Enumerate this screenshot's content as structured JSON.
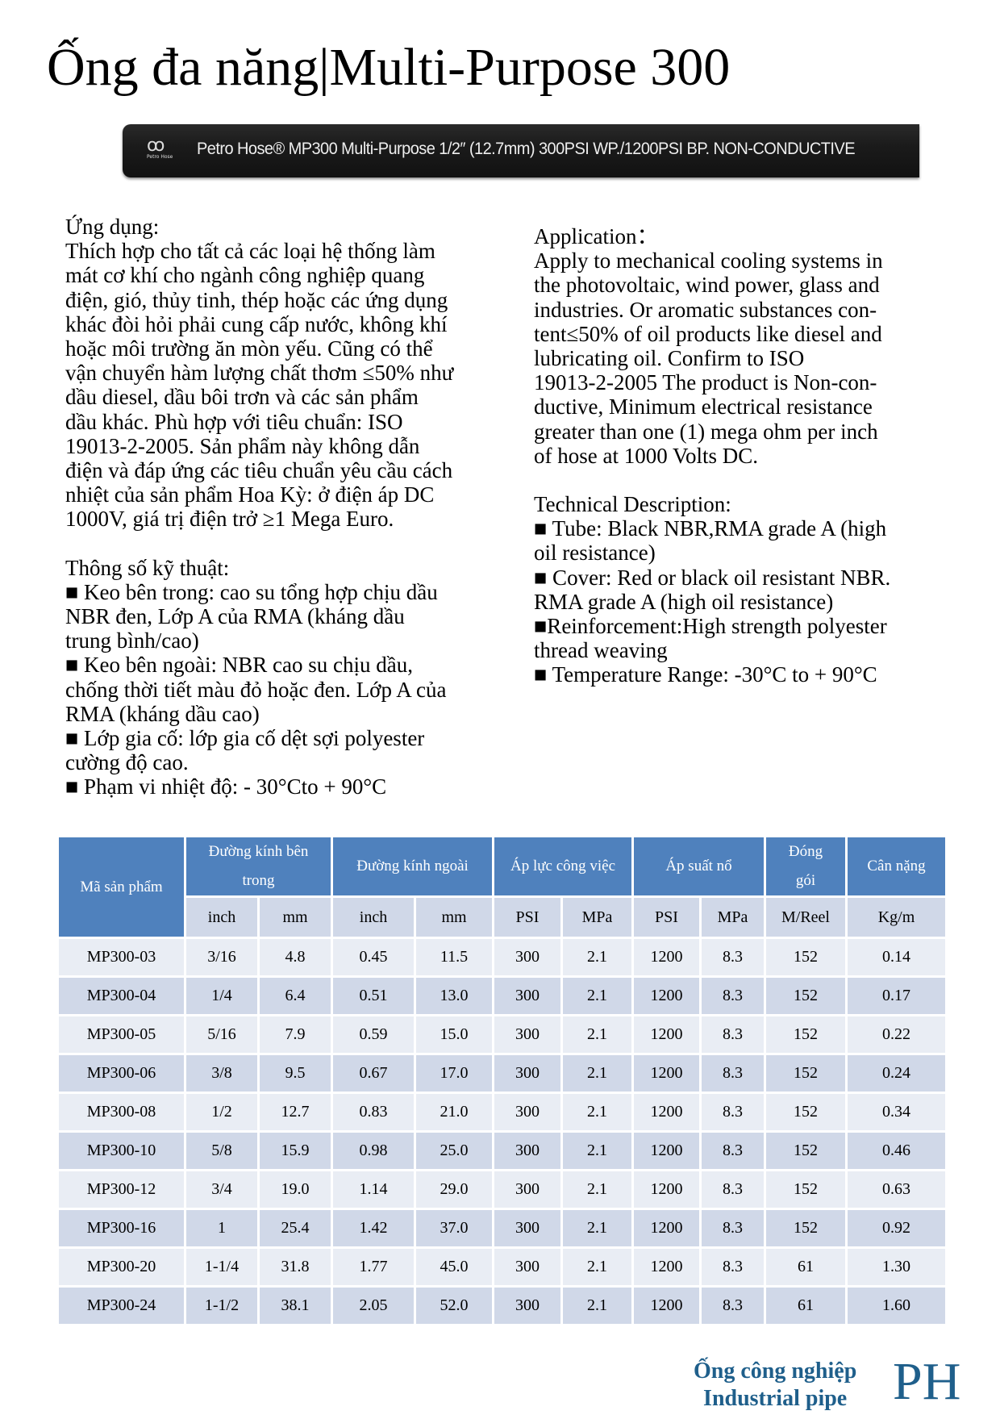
{
  "title": "Ống đa năng|Multi-Purpose 300",
  "hose_banner": {
    "logo_text": "Petro Hose",
    "text": "Petro Hose® MP300 Multi-Purpose 1/2″ (12.7mm) 300PSI WP./1200PSI BP. NON-CONDUCTIVE"
  },
  "left_column": {
    "lines1": [
      "Ứng dụng:",
      "Thích hợp cho tất cả các loại hệ thống làm",
      "mát cơ khí cho ngành công nghiệp quang",
      "điện, gió, thủy tinh, thép hoặc các ứng dụng",
      "khác đòi hỏi phải cung cấp nước, không khí",
      "hoặc môi trường ăn mòn yếu. Cũng có thể",
      "vận chuyển hàm lượng chất thơm ≤50% như",
      "dầu diesel, dầu bôi trơn và các sản phẩm",
      "dầu khác. Phù hợp với tiêu chuẩn: ISO",
      "19013-2-2005. Sản phẩm này không dẫn",
      "điện và đáp ứng các tiêu chuẩn yêu cầu cách",
      "nhiệt của sản phẩm Hoa Kỳ: ở điện áp DC",
      "1000V, giá trị điện trở ≥1 Mega Euro."
    ],
    "lines2": [
      "Thông số kỹ thuật:",
      "■ Keo bên trong: cao su tổng hợp chịu dầu",
      "NBR đen, Lớp A của RMA (kháng dầu",
      "trung bình/cao)",
      "■ Keo bên ngoài: NBR cao su chịu dầu,",
      "chống thời tiết màu đỏ hoặc đen. Lớp A của",
      "RMA (kháng dầu cao)",
      "■ Lớp gia cố: lớp gia cố dệt sợi polyester",
      "cường độ cao.",
      "■ Phạm vi nhiệt độ: - 30°Cto + 90°C"
    ]
  },
  "right_column": {
    "lines1": [
      "Application：",
      "Apply to mechanical cooling systems in",
      "the photovoltaic, wind power, glass and",
      "industries. Or aromatic substances con-",
      "tent≤50% of oil products like diesel and",
      "lubricating oil. Confirm to ISO",
      "19013-2-2005 The product is Non-con-",
      "ductive, Minimum electrical resistance",
      "greater than one (1) mega ohm per inch",
      "of hose at 1000 Volts DC."
    ],
    "lines2": [
      "Technical Description:",
      "■ Tube: Black NBR,RMA grade A (high",
      "oil resistance)",
      "■ Cover: Red or black oil resistant NBR.",
      "RMA grade A (high oil resistance)",
      "■Reinforcement:High strength polyester",
      "thread weaving",
      "■ Temperature Range: -30°C to + 90°C"
    ]
  },
  "table": {
    "header": {
      "code": "Mã sản phẩm",
      "inner_1": "Đường kính bên",
      "inner_2": "trong",
      "outer": "Đường kính ngoài",
      "working": "Áp lực công việc",
      "burst": "Áp suất nổ",
      "pack_1": "Đóng",
      "pack_2": "gói",
      "weight": "Cân nặng"
    },
    "units": [
      "inch",
      "mm",
      "inch",
      "mm",
      "PSI",
      "MPa",
      "PSI",
      "MPa",
      "M/Reel",
      "Kg/m"
    ],
    "rows": [
      [
        "MP300-03",
        "3/16",
        "4.8",
        "0.45",
        "11.5",
        "300",
        "2.1",
        "1200",
        "8.3",
        "152",
        "0.14"
      ],
      [
        "MP300-04",
        "1/4",
        "6.4",
        "0.51",
        "13.0",
        "300",
        "2.1",
        "1200",
        "8.3",
        "152",
        "0.17"
      ],
      [
        "MP300-05",
        "5/16",
        "7.9",
        "0.59",
        "15.0",
        "300",
        "2.1",
        "1200",
        "8.3",
        "152",
        "0.22"
      ],
      [
        "MP300-06",
        "3/8",
        "9.5",
        "0.67",
        "17.0",
        "300",
        "2.1",
        "1200",
        "8.3",
        "152",
        "0.24"
      ],
      [
        "MP300-08",
        "1/2",
        "12.7",
        "0.83",
        "21.0",
        "300",
        "2.1",
        "1200",
        "8.3",
        "152",
        "0.34"
      ],
      [
        "MP300-10",
        "5/8",
        "15.9",
        "0.98",
        "25.0",
        "300",
        "2.1",
        "1200",
        "8.3",
        "152",
        "0.46"
      ],
      [
        "MP300-12",
        "3/4",
        "19.0",
        "1.14",
        "29.0",
        "300",
        "2.1",
        "1200",
        "8.3",
        "152",
        "0.63"
      ],
      [
        "MP300-16",
        "1",
        "25.4",
        "1.42",
        "37.0",
        "300",
        "2.1",
        "1200",
        "8.3",
        "152",
        "0.92"
      ],
      [
        "MP300-20",
        "1-1/4",
        "31.8",
        "1.77",
        "45.0",
        "300",
        "2.1",
        "1200",
        "8.3",
        "61",
        "1.30"
      ],
      [
        "MP300-24",
        "1-1/2",
        "38.1",
        "2.05",
        "52.0",
        "300",
        "2.1",
        "1200",
        "8.3",
        "61",
        "1.60"
      ]
    ]
  },
  "footer": {
    "line1": "Ống công nghiệp",
    "line2": "Industrial pipe",
    "logo": "PH"
  },
  "colors": {
    "header_blue": "#4f81bd",
    "row_light": "#e9edf4",
    "row_dark": "#d0d8e8",
    "footer_blue": "#1f5f8b"
  }
}
